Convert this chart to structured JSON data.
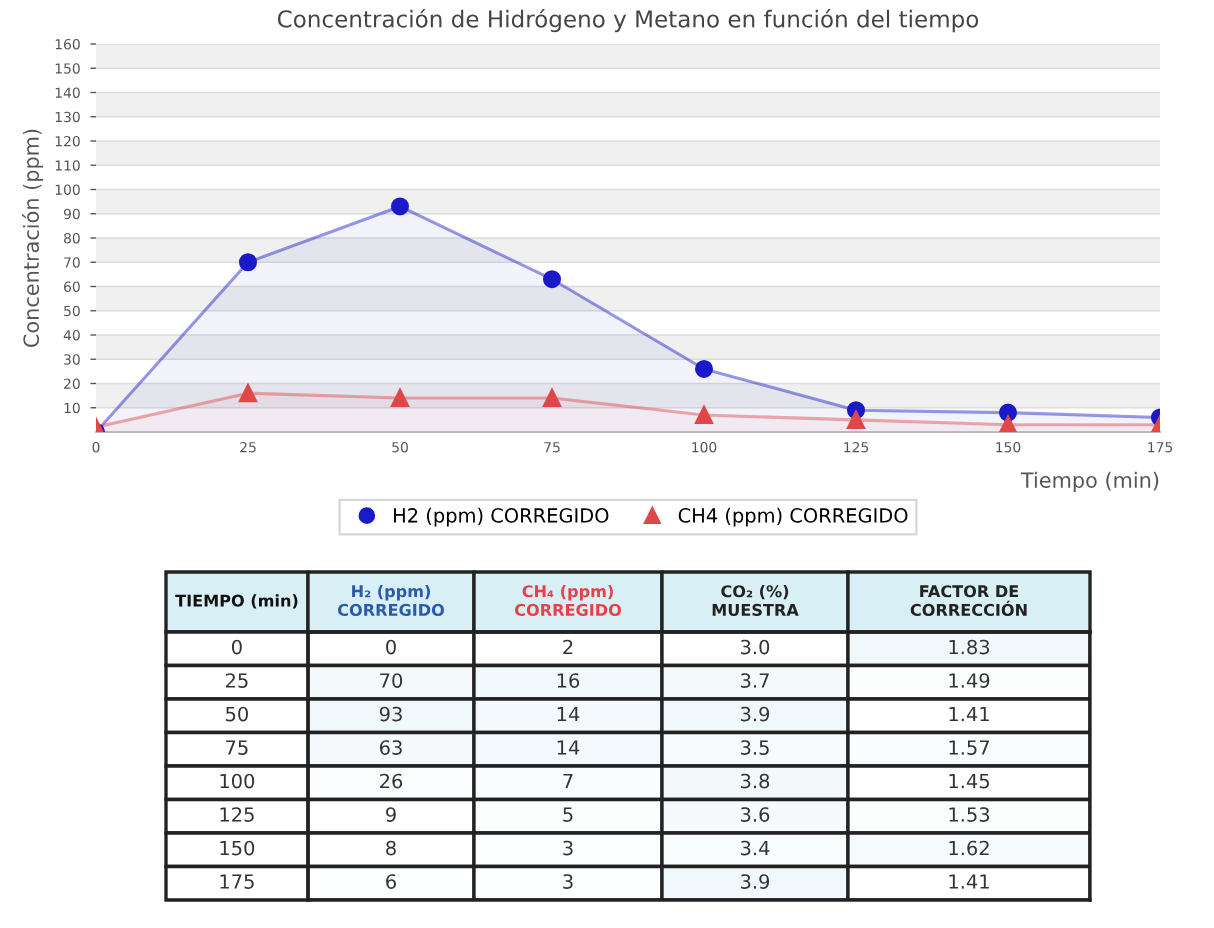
{
  "chart_data": [
    {
      "type": "area",
      "title": "Concentración de Hidrógeno y Metano en función del tiempo",
      "xlabel": "Tiempo (min)",
      "ylabel": "Concentración (ppm)",
      "x": [
        0,
        25,
        50,
        75,
        100,
        125,
        150,
        175
      ],
      "xlim": [
        0,
        175
      ],
      "xticks": [
        0,
        25,
        50,
        75,
        100,
        125,
        150,
        175
      ],
      "ylim": [
        0,
        160
      ],
      "yticks": [
        10,
        20,
        30,
        40,
        50,
        60,
        70,
        80,
        90,
        100,
        110,
        120,
        130,
        140,
        150,
        160
      ],
      "grid": "y",
      "legend": "bottom",
      "series": [
        {
          "name": "H2 (ppm) CORREGIDO",
          "color": "#1a1ac8",
          "marker": "circle",
          "values": [
            0,
            70,
            93,
            63,
            26,
            9,
            8,
            6
          ]
        },
        {
          "name": "CH4 (ppm) CORREGIDO",
          "color": "#e04848",
          "marker": "triangle",
          "values": [
            2,
            16,
            14,
            14,
            7,
            5,
            3,
            3
          ]
        }
      ]
    },
    {
      "type": "heatmap",
      "ylabel": "TIEMPO (min)",
      "data_labels": true,
      "categories": [
        "H₂ (ppm)\nCORREGIDO",
        "CH₄ (ppm)\nCORREGIDO",
        "CO₂ (%)\nMUESTRA",
        "FACTOR DE\nCORRECCIÓN"
      ],
      "colors": [
        "#2a5aa8",
        "#e8404a",
        "#222222",
        "#222222"
      ],
      "y_categories": [
        "0",
        "25",
        "50",
        "75",
        "100",
        "125",
        "150",
        "175"
      ],
      "cells": [
        [
          0,
          2,
          3.0,
          1.83
        ],
        [
          70,
          16,
          3.7,
          1.49
        ],
        [
          93,
          14,
          3.9,
          1.41
        ],
        [
          63,
          14,
          3.5,
          1.57
        ],
        [
          26,
          7,
          3.8,
          1.45
        ],
        [
          9,
          5,
          3.6,
          1.53
        ],
        [
          8,
          3,
          3.4,
          1.62
        ],
        [
          6,
          3,
          3.9,
          1.41
        ]
      ],
      "cell_labels": [
        [
          "0",
          "2",
          "3.0",
          "1.83"
        ],
        [
          "70",
          "16",
          "3.7",
          "1.49"
        ],
        [
          "93",
          "14",
          "3.9",
          "1.41"
        ],
        [
          "63",
          "14",
          "3.5",
          "1.57"
        ],
        [
          "26",
          "7",
          "3.8",
          "1.45"
        ],
        [
          "9",
          "5",
          "3.6",
          "1.53"
        ],
        [
          "8",
          "3",
          "3.4",
          "1.62"
        ],
        [
          "6",
          "3",
          "3.9",
          "1.41"
        ]
      ]
    }
  ]
}
